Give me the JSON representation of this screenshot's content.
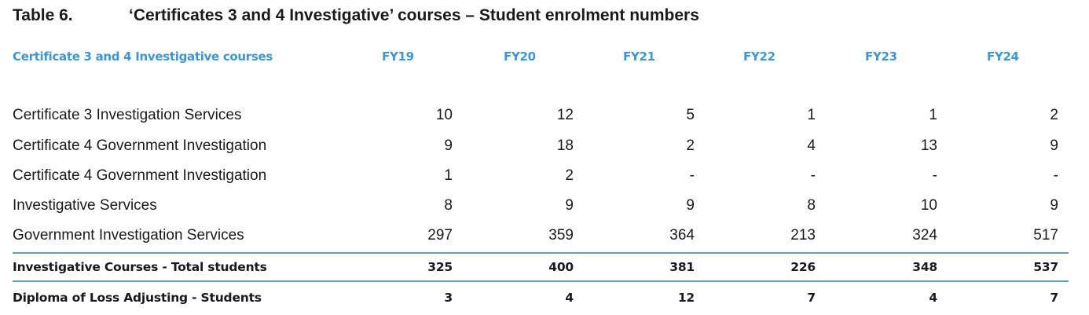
{
  "caption": {
    "number": "Table 6.",
    "title": "‘Certificates 3 and 4 Investigative’ courses – Student enrolment numbers"
  },
  "table": {
    "header": {
      "label": "Certificate 3 and 4 Investigative courses",
      "years": [
        "FY19",
        "FY20",
        "FY21",
        "FY22",
        "FY23",
        "FY24"
      ]
    },
    "rows": [
      {
        "label": "Certificate 3 Investigation Services",
        "values": [
          "10",
          "12",
          "5",
          "1",
          "1",
          "2"
        ]
      },
      {
        "label": "Certificate 4 Government Investigation",
        "values": [
          "9",
          "18",
          "2",
          "4",
          "13",
          "9"
        ]
      },
      {
        "label": "Certificate 4 Government Investigation",
        "values": [
          "1",
          "2",
          "-",
          "-",
          "-",
          "-"
        ]
      },
      {
        "label": "Investigative Services",
        "values": [
          "8",
          "9",
          "9",
          "8",
          "10",
          "9"
        ]
      },
      {
        "label": "Government Investigation Services",
        "values": [
          "297",
          "359",
          "364",
          "213",
          "324",
          "517"
        ]
      }
    ],
    "total": {
      "label": "Investigative Courses - Total students",
      "values": [
        "325",
        "400",
        "381",
        "226",
        "348",
        "537"
      ]
    },
    "diploma": {
      "label": "Diploma of Loss Adjusting - Students",
      "values": [
        "3",
        "4",
        "12",
        "7",
        "4",
        "7"
      ]
    }
  },
  "colors": {
    "header_text": "#3d96d8",
    "rule": "#5b9fd6",
    "body_text": "#1a1a1a"
  }
}
